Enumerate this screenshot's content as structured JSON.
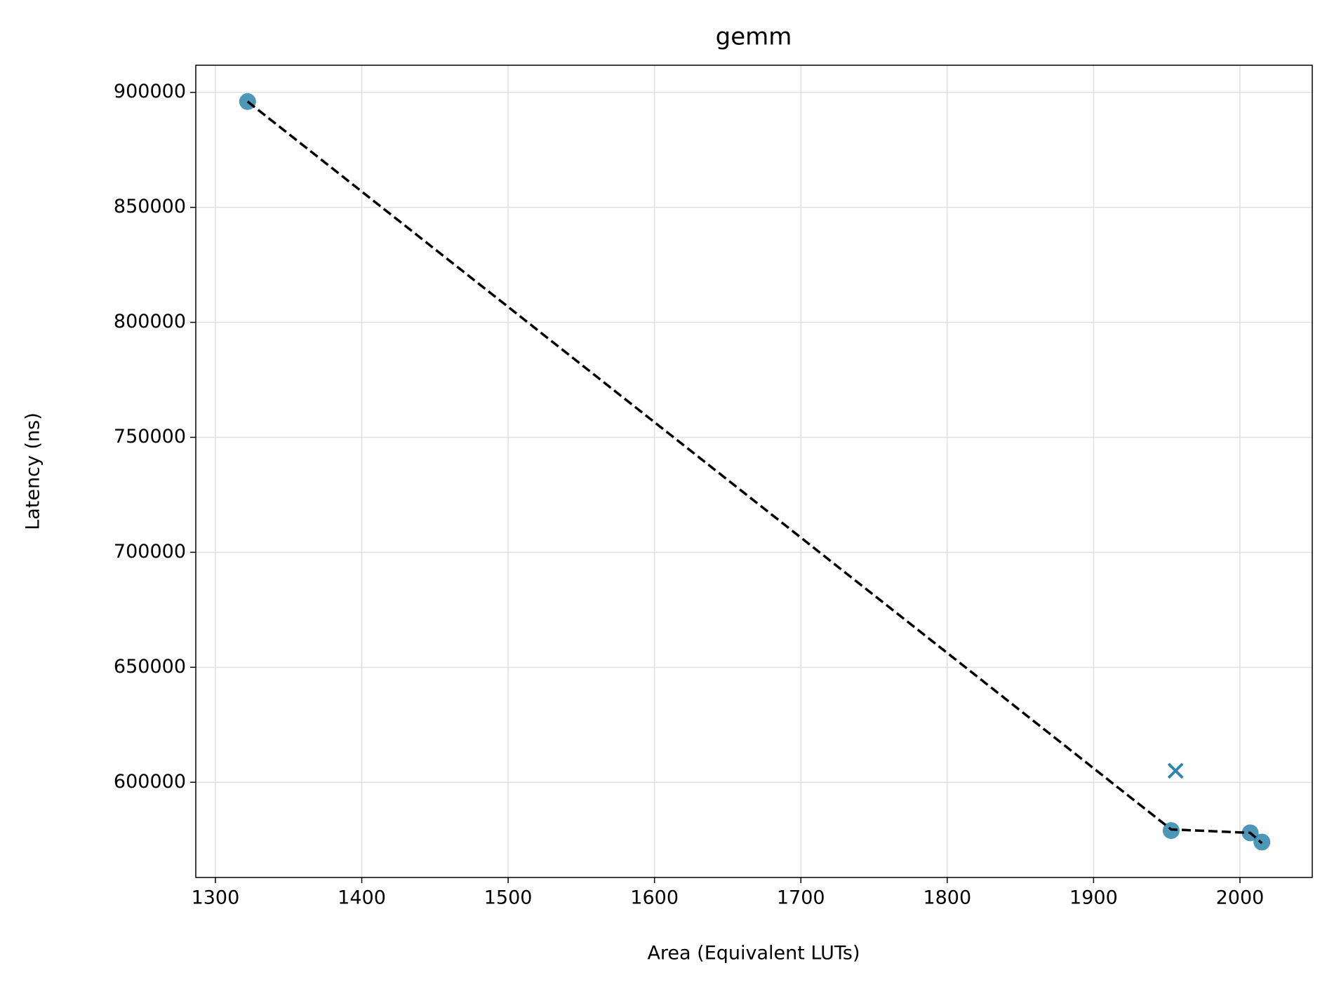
{
  "chart_data": {
    "type": "scatter",
    "title": "gemm",
    "xlabel": "Area (Equivalent LUTs)",
    "ylabel": "Latency (ns)",
    "xlim": [
      1286.6,
      2049.4
    ],
    "ylim": [
      558600,
      911800
    ],
    "xticks": [
      1300,
      1400,
      1500,
      1600,
      1700,
      1800,
      1900,
      2000
    ],
    "yticks": [
      600000,
      650000,
      700000,
      750000,
      800000,
      850000,
      900000
    ],
    "grid": true,
    "series": [
      {
        "marker": "o",
        "color": "#2e86ab",
        "x": [
          1322,
          1953,
          2007,
          2015
        ],
        "values": [
          896000,
          579000,
          578000,
          574000
        ]
      },
      {
        "marker": "x",
        "color": "#2e86ab",
        "x": [
          1956
        ],
        "values": [
          605000
        ]
      },
      {
        "marker": "line",
        "linestyle": "dashed",
        "color": "#000000",
        "x": [
          1322,
          1953,
          2007,
          2015
        ],
        "values": [
          896000,
          579500,
          578000,
          573500
        ]
      }
    ]
  }
}
